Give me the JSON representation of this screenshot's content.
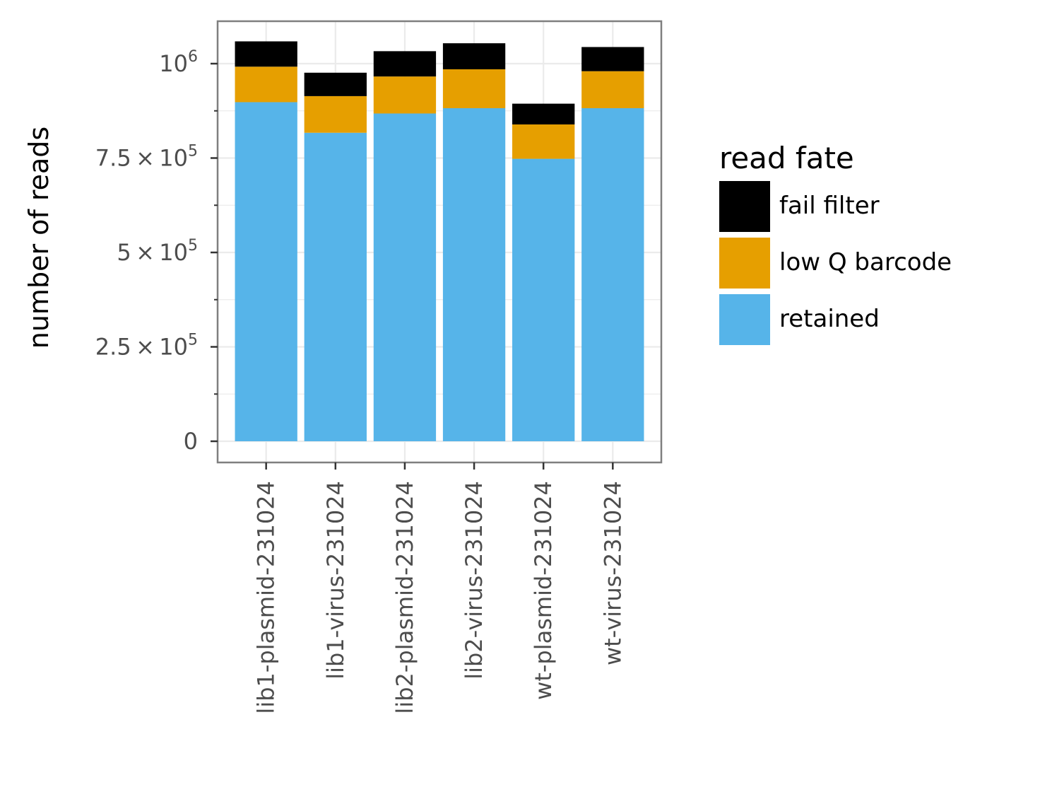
{
  "chart_data": {
    "type": "bar",
    "stacked": true,
    "ylabel": "number of reads",
    "xlabel": "",
    "ylim": [
      0,
      1110000
    ],
    "grid": true,
    "legend_position": "right",
    "legend_title": "read fate",
    "categories": [
      "lib1-plasmid-231024",
      "lib1-virus-231024",
      "lib2-plasmid-231024",
      "lib2-virus-231024",
      "wt-plasmid-231024",
      "wt-virus-231024"
    ],
    "y_ticks": [
      {
        "value": 0,
        "mantissa": "0",
        "exponent": ""
      },
      {
        "value": 250000,
        "mantissa": "2.5 × 10",
        "exponent": "5"
      },
      {
        "value": 500000,
        "mantissa": "5 × 10",
        "exponent": "5"
      },
      {
        "value": 750000,
        "mantissa": "7.5 × 10",
        "exponent": "5"
      },
      {
        "value": 1000000,
        "mantissa": "10",
        "exponent": "6"
      }
    ],
    "series": [
      {
        "name": "retained",
        "color": "#56b4e9",
        "values": [
          898000,
          817000,
          868000,
          882000,
          748000,
          882000
        ]
      },
      {
        "name": "low Q barcode",
        "color": "#e69f00",
        "values": [
          94000,
          97000,
          98000,
          103000,
          91000,
          98000
        ]
      },
      {
        "name": "fail filter",
        "color": "#000000",
        "values": [
          67000,
          62000,
          67000,
          69000,
          55000,
          64000
        ]
      }
    ],
    "legend_order": [
      "fail filter",
      "low Q barcode",
      "retained"
    ]
  }
}
